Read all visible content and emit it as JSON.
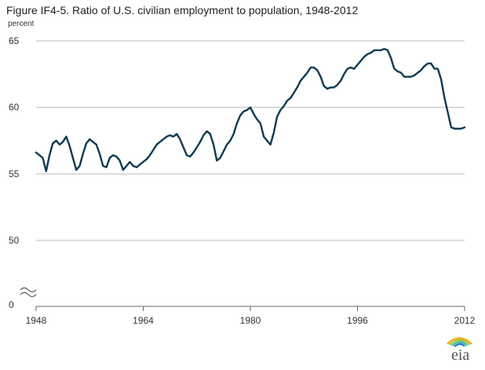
{
  "chart_data": {
    "type": "line",
    "title": "Figure IF4-5. Ratio of U.S. civilian employment to population, 1948-2012",
    "ylabel": "percent",
    "xlabel": "",
    "xlim": [
      1948,
      2012
    ],
    "ylim": [
      0,
      65
    ],
    "broken_axis_between": [
      0,
      50
    ],
    "grid": true,
    "y_ticks": [
      "0",
      "50",
      "55",
      "60",
      "65"
    ],
    "x_ticks": [
      "1948",
      "1964",
      "1980",
      "1996",
      "2012"
    ],
    "line_color": "#0e3a52",
    "series": [
      {
        "x": [
          1948.0,
          1948.5,
          1949.0,
          1949.5,
          1950.0,
          1950.5,
          1951.0,
          1951.5,
          1952.0,
          1952.5,
          1953.0,
          1953.5,
          1954.0,
          1954.5,
          1955.0,
          1955.5,
          1956.0,
          1956.5,
          1957.0,
          1957.5,
          1958.0,
          1958.5,
          1959.0,
          1959.5,
          1960.0,
          1960.5,
          1961.0,
          1961.5,
          1962.0,
          1962.5,
          1963.0,
          1963.5,
          1964.0,
          1964.5,
          1965.0,
          1965.5,
          1966.0,
          1966.5,
          1967.0,
          1967.5,
          1968.0,
          1968.5,
          1969.0,
          1969.5,
          1970.0,
          1970.5,
          1971.0,
          1971.5,
          1972.0,
          1972.5,
          1973.0,
          1973.5,
          1974.0,
          1974.5,
          1975.0,
          1975.5,
          1976.0,
          1976.5,
          1977.0,
          1977.5,
          1978.0,
          1978.5,
          1979.0,
          1979.5,
          1980.0,
          1980.5,
          1981.0,
          1981.5,
          1982.0,
          1982.5,
          1983.0,
          1983.5,
          1984.0,
          1984.5,
          1985.0,
          1985.5,
          1986.0,
          1986.5,
          1987.0,
          1987.5,
          1988.0,
          1988.5,
          1989.0,
          1989.5,
          1990.0,
          1990.5,
          1991.0,
          1991.5,
          1992.0,
          1992.5,
          1993.0,
          1993.5,
          1994.0,
          1994.5,
          1995.0,
          1995.5,
          1996.0,
          1996.5,
          1997.0,
          1997.5,
          1998.0,
          1998.5,
          1999.0,
          1999.5,
          2000.0,
          2000.5,
          2001.0,
          2001.5,
          2002.0,
          2002.5,
          2003.0,
          2003.5,
          2004.0,
          2004.5,
          2005.0,
          2005.5,
          2006.0,
          2006.5,
          2007.0,
          2007.5,
          2008.0,
          2008.5,
          2009.0,
          2009.5,
          2010.0,
          2010.5,
          2011.0,
          2011.5,
          2012.0
        ],
        "values": [
          56.6,
          56.4,
          56.2,
          55.2,
          56.4,
          57.3,
          57.5,
          57.2,
          57.4,
          57.8,
          57.1,
          56.2,
          55.3,
          55.6,
          56.5,
          57.3,
          57.6,
          57.4,
          57.2,
          56.5,
          55.6,
          55.5,
          56.2,
          56.4,
          56.3,
          56.0,
          55.3,
          55.6,
          55.9,
          55.6,
          55.5,
          55.7,
          55.9,
          56.1,
          56.4,
          56.8,
          57.2,
          57.4,
          57.6,
          57.8,
          57.9,
          57.8,
          58.0,
          57.6,
          57.0,
          56.4,
          56.3,
          56.6,
          57.0,
          57.4,
          57.9,
          58.2,
          58.0,
          57.2,
          56.0,
          56.2,
          56.7,
          57.2,
          57.5,
          58.0,
          58.8,
          59.4,
          59.7,
          59.8,
          60.0,
          59.5,
          59.1,
          58.8,
          57.8,
          57.5,
          57.2,
          58.1,
          59.3,
          59.8,
          60.1,
          60.5,
          60.7,
          61.1,
          61.5,
          62.0,
          62.3,
          62.6,
          63.0,
          63.0,
          62.8,
          62.3,
          61.6,
          61.4,
          61.5,
          61.5,
          61.7,
          62.0,
          62.5,
          62.9,
          63.0,
          62.9,
          63.2,
          63.5,
          63.8,
          64.0,
          64.1,
          64.3,
          64.3,
          64.3,
          64.4,
          64.3,
          63.7,
          62.9,
          62.7,
          62.6,
          62.3,
          62.3,
          62.3,
          62.4,
          62.6,
          62.8,
          63.1,
          63.3,
          63.3,
          62.9,
          62.9,
          62.1,
          60.7,
          59.6,
          58.5,
          58.4,
          58.4,
          58.4,
          58.5
        ]
      }
    ]
  },
  "logo": {
    "text": "eia",
    "arc_colors": [
      "#f5a800",
      "#8dc63f",
      "#3bb3a5",
      "#1e73be"
    ]
  }
}
